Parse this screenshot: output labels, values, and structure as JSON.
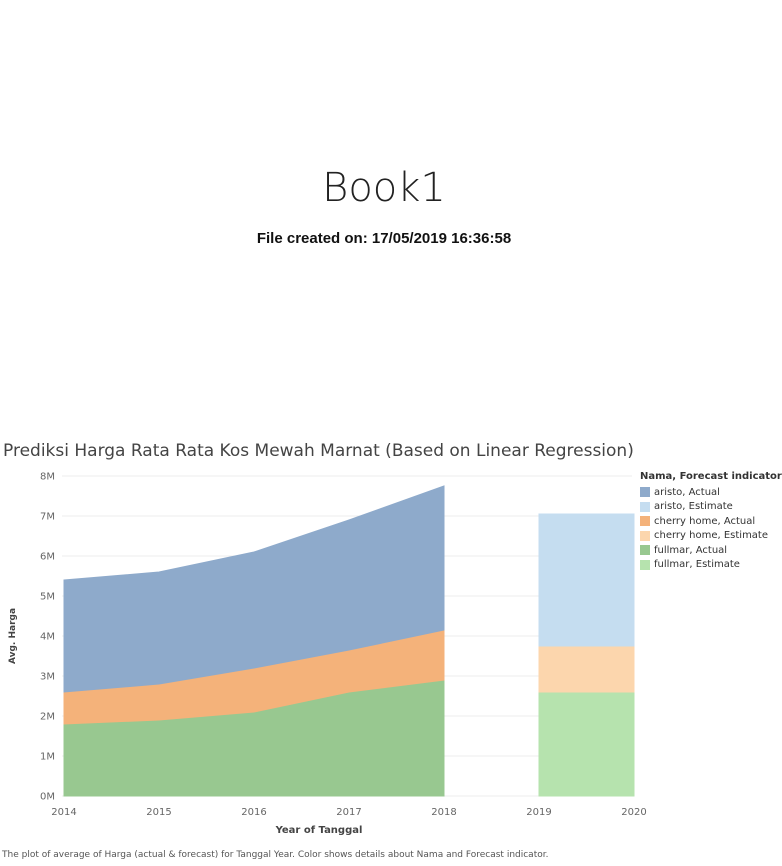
{
  "header": {
    "title": "Book1",
    "created": "File created on: 17/05/2019 16:36:58"
  },
  "caption": "The plot of average of Harga (actual & forecast)  for Tanggal Year.  Color shows details about Nama and Forecast indicator.",
  "legend": {
    "title": "Nama, Forecast indicator",
    "items": [
      {
        "label": "aristo, Actual",
        "color": "#8eaacb"
      },
      {
        "label": "aristo, Estimate",
        "color": "#c5ddf0"
      },
      {
        "label": "cherry home, Actual",
        "color": "#f4b27a"
      },
      {
        "label": "cherry home, Estimate",
        "color": "#fcd6ad"
      },
      {
        "label": "fullmar, Actual",
        "color": "#98c890"
      },
      {
        "label": "fullmar, Estimate",
        "color": "#b6e3ae"
      }
    ]
  },
  "chart_data": {
    "type": "area",
    "title": "Prediksi Harga Rata Rata Kos Mewah Marnat (Based on Linear Regression)",
    "xlabel": "Year of Tanggal",
    "ylabel": "Avg. Harga",
    "x": [
      2014,
      2015,
      2016,
      2017,
      2018,
      2019,
      2020
    ],
    "x_ticks": [
      "2014",
      "2015",
      "2016",
      "2017",
      "2018",
      "2019",
      "2020"
    ],
    "y_ticks": [
      "0M",
      "1M",
      "2M",
      "3M",
      "4M",
      "5M",
      "6M",
      "7M",
      "8M"
    ],
    "ylim": [
      0,
      8000000
    ],
    "stacked": true,
    "grid": true,
    "legend_position": "right",
    "actual": {
      "x": [
        2014,
        2015,
        2016,
        2017,
        2018
      ],
      "series": [
        {
          "name": "fullmar, Actual",
          "color": "#98c890",
          "values": [
            1800000,
            1900000,
            2100000,
            2600000,
            2900000
          ]
        },
        {
          "name": "cherry home, Actual",
          "color": "#f4b27a",
          "values": [
            800000,
            900000,
            1100000,
            1050000,
            1250000
          ]
        },
        {
          "name": "aristo, Actual",
          "color": "#8eaacb",
          "values": [
            2800000,
            2800000,
            2900000,
            3250000,
            3600000
          ]
        }
      ]
    },
    "estimate": {
      "x": [
        2019,
        2020
      ],
      "series": [
        {
          "name": "fullmar, Estimate",
          "color": "#b6e3ae",
          "values": [
            2600000,
            2600000
          ]
        },
        {
          "name": "cherry home, Estimate",
          "color": "#fcd6ad",
          "values": [
            1150000,
            1150000
          ]
        },
        {
          "name": "aristo, Estimate",
          "color": "#c5ddf0",
          "values": [
            3300000,
            3300000
          ]
        }
      ]
    }
  }
}
